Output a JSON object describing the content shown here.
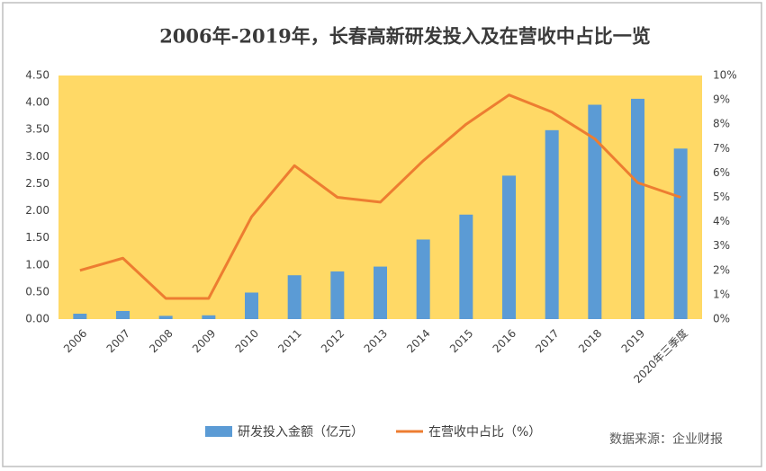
{
  "chart_data": {
    "type": "bar",
    "title": "2006年-2019年，长春高新研发投入及在营收中占比一览",
    "categories": [
      "2006",
      "2007",
      "2008",
      "2009",
      "2010",
      "2011",
      "2012",
      "2013",
      "2014",
      "2015",
      "2016",
      "2017",
      "2018",
      "2019",
      "2020年三季度"
    ],
    "series": [
      {
        "name": "研发投入金额（亿元）",
        "type": "bar",
        "color": "#5b9bd5",
        "values": [
          0.1,
          0.15,
          0.06,
          0.07,
          0.49,
          0.81,
          0.88,
          0.97,
          1.47,
          1.93,
          2.65,
          3.49,
          3.96,
          4.07,
          3.15
        ]
      },
      {
        "name": "在营收中占比（%）",
        "type": "line",
        "axis": "y2",
        "color": "#ed7d31",
        "values": [
          2.0,
          2.5,
          0.85,
          0.85,
          4.2,
          6.3,
          5.0,
          4.8,
          6.5,
          8.0,
          9.2,
          8.5,
          7.4,
          5.6,
          5.0
        ]
      }
    ],
    "ylim": [
      0,
      4.5
    ],
    "yticks": [
      {
        "value": 0,
        "label": "0.00"
      },
      {
        "value": 0.5,
        "label": "0.50"
      },
      {
        "value": 1,
        "label": "1.00"
      },
      {
        "value": 1.5,
        "label": "1.50"
      },
      {
        "value": 2,
        "label": "2.00"
      },
      {
        "value": 2.5,
        "label": "2.50"
      },
      {
        "value": 3,
        "label": "3.00"
      },
      {
        "value": 3.5,
        "label": "3.50"
      },
      {
        "value": 4,
        "label": "4.00"
      },
      {
        "value": 4.5,
        "label": "4.50"
      }
    ],
    "y2lim": [
      0,
      10
    ],
    "y2ticks": [
      {
        "value": 0,
        "label": "0%"
      },
      {
        "value": 1,
        "label": "1%"
      },
      {
        "value": 2,
        "label": "2%"
      },
      {
        "value": 3,
        "label": "3%"
      },
      {
        "value": 4,
        "label": "4%"
      },
      {
        "value": 5,
        "label": "5%"
      },
      {
        "value": 6,
        "label": "6%"
      },
      {
        "value": 7,
        "label": "7%"
      },
      {
        "value": 8,
        "label": "8%"
      },
      {
        "value": 9,
        "label": "9%"
      },
      {
        "value": 10,
        "label": "10%"
      }
    ],
    "grid": false,
    "plot_background": "#ffd966",
    "legend": "bottom",
    "source": "数据来源：企业财报"
  }
}
